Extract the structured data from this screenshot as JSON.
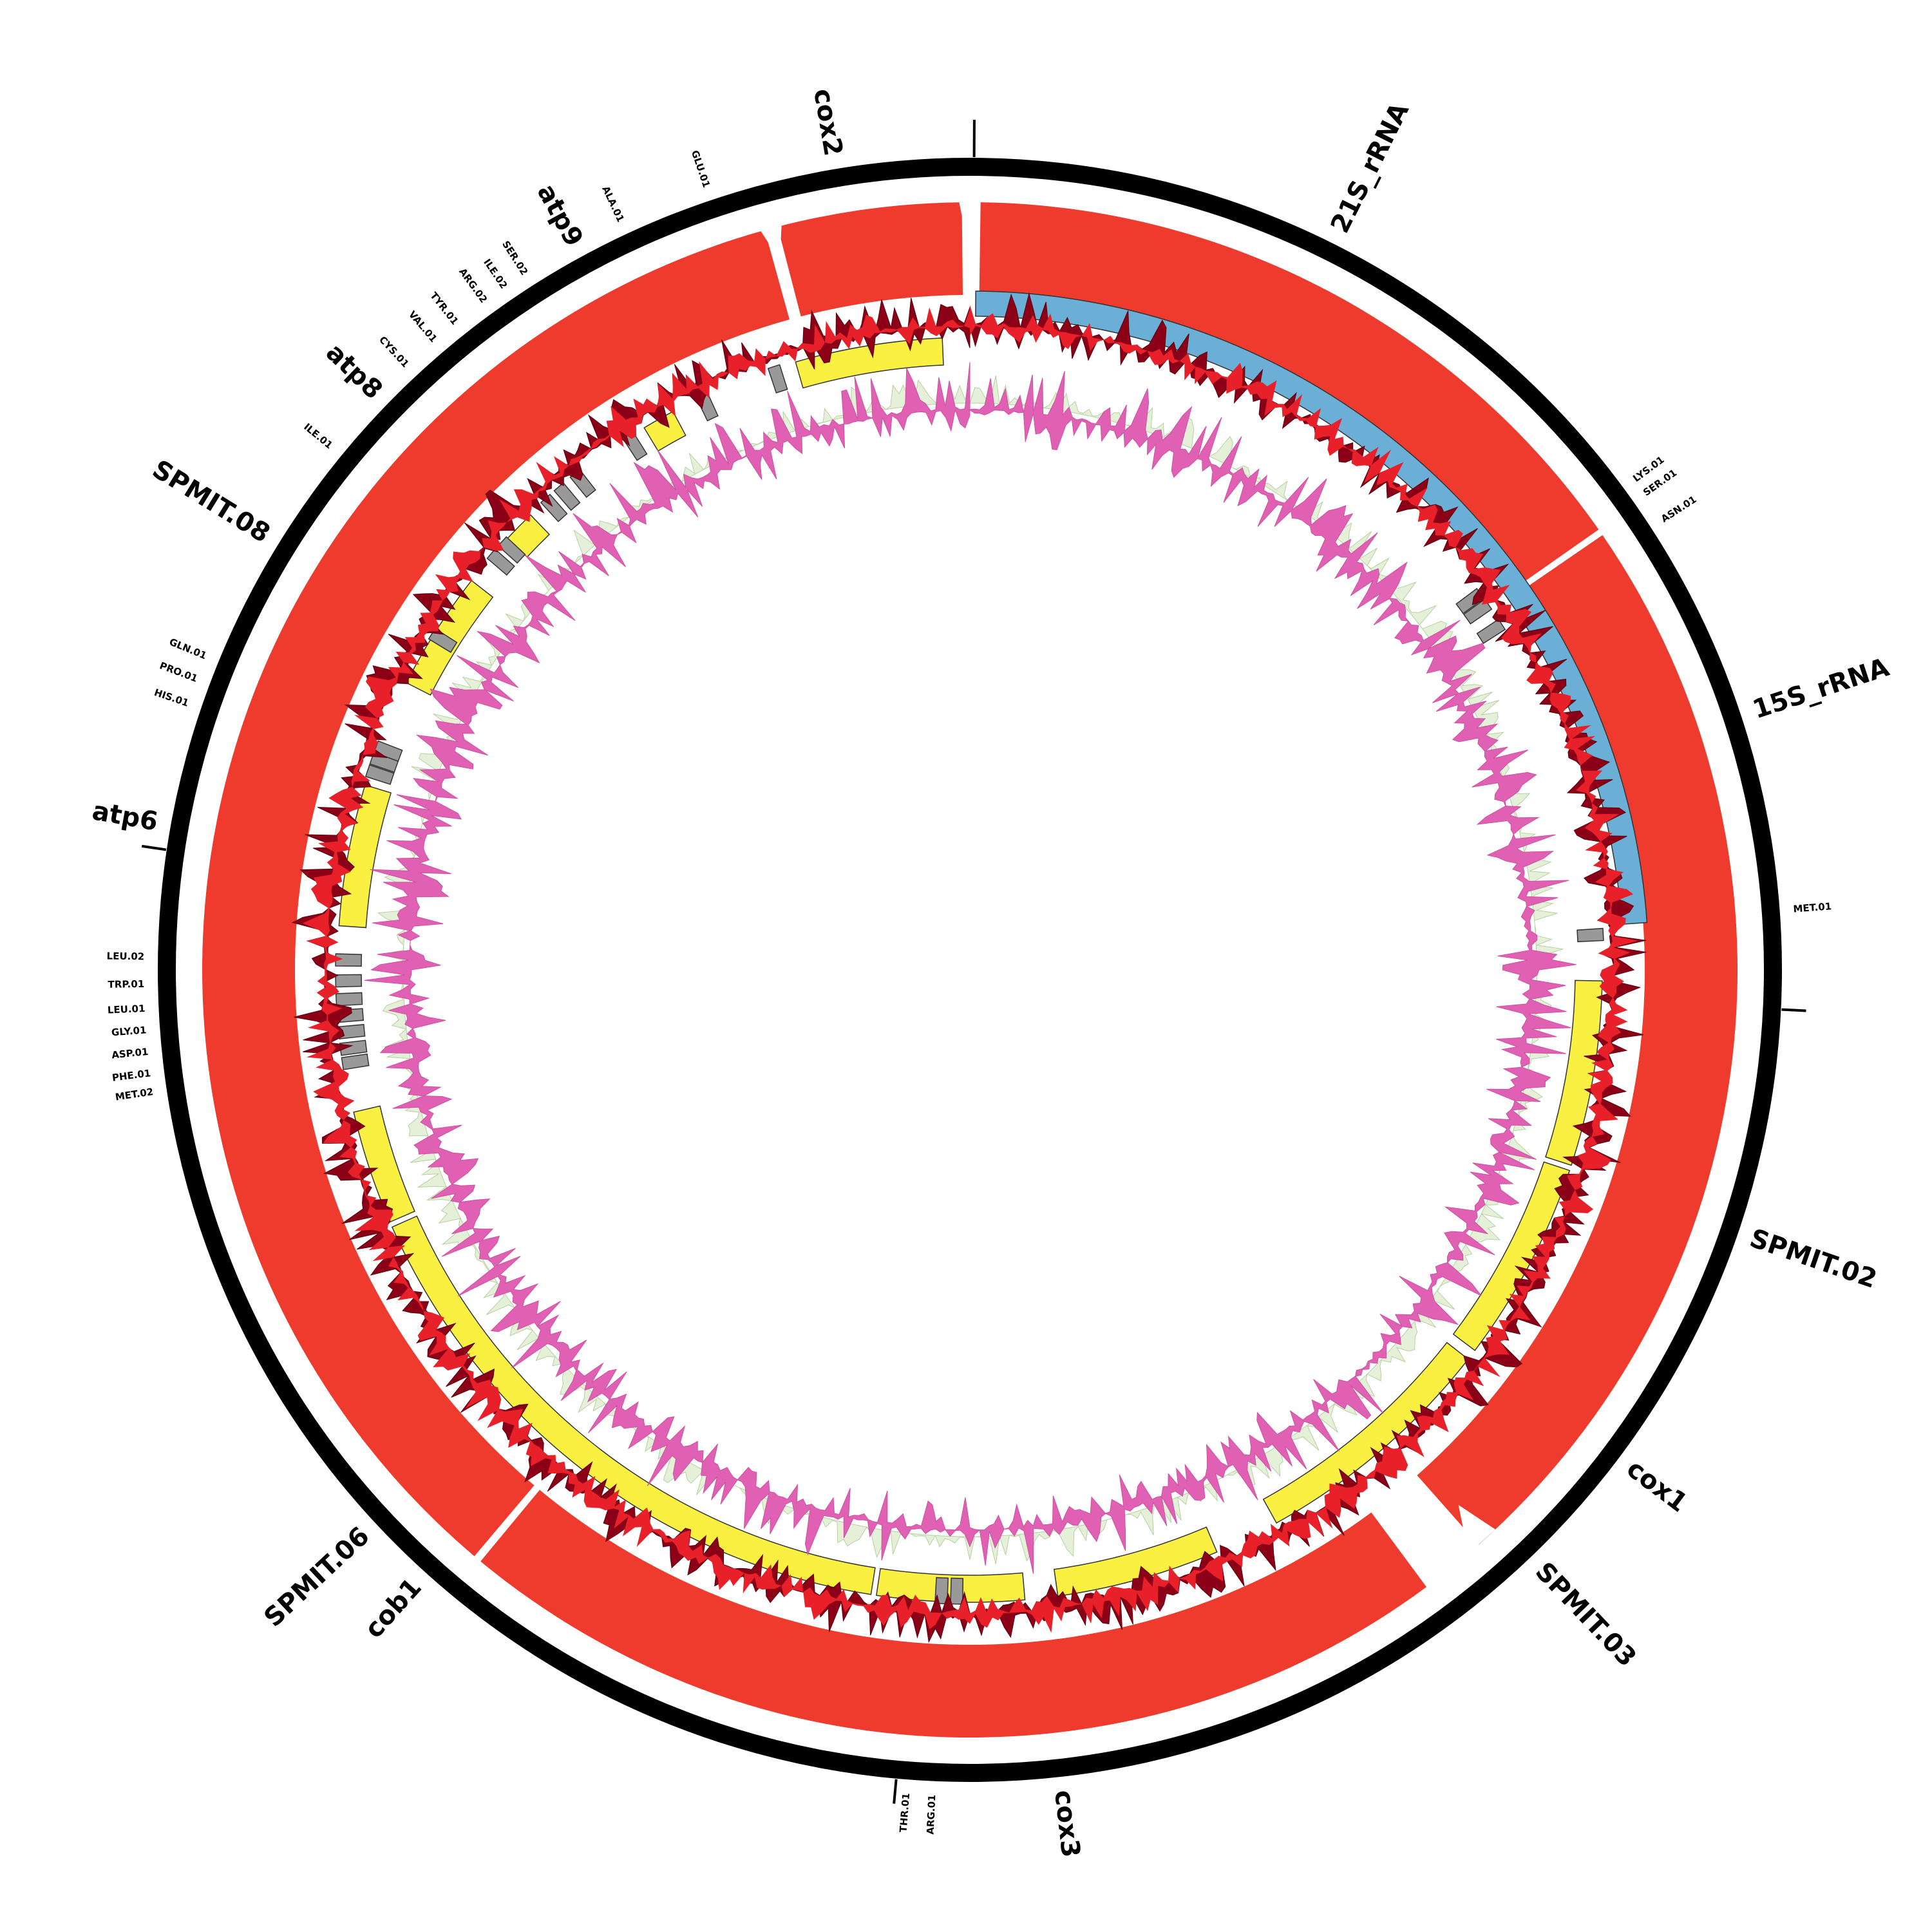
{
  "gene_labels": [
    "cox2",
    "21S_rRNA",
    "15S_rRNA",
    "SPMIT.02",
    "cox1",
    "SPMIT.03",
    "cox3",
    "cob1",
    "SPMIT.06",
    "atp6",
    "SPMIT.08",
    "atp8",
    "atp9"
  ],
  "trna_labels": [
    "GLU.01",
    "ALA.01",
    "SER.02",
    "ILE.02",
    "ARG.02",
    "TYR.01",
    "VAL.01",
    "CYS.01",
    "ILE.01",
    "GLN.01",
    "PRO.01",
    "HIS.01",
    "LEU.02",
    "TRP.01",
    "LEU.01",
    "GLY.01",
    "ASP.01",
    "PHE.01",
    "MET.02",
    "THR.01",
    "ARG.01",
    "LYS.01",
    "SER.01",
    "ASN.01",
    "MET.01"
  ]
}
